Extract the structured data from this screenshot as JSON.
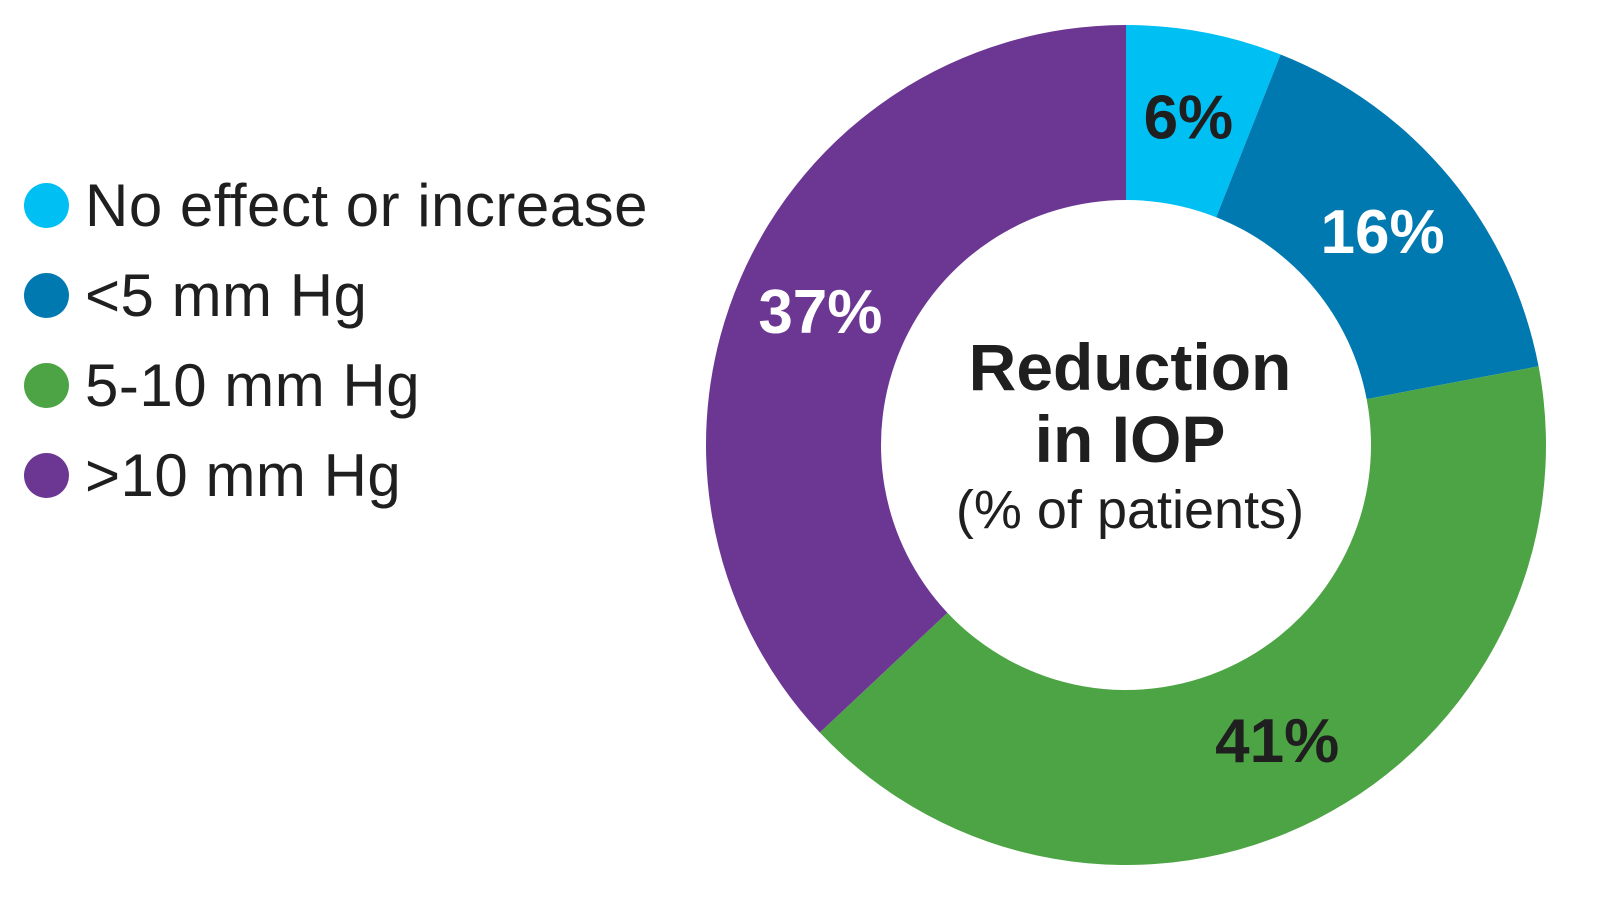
{
  "chart_data": {
    "type": "pie",
    "variant": "donut",
    "center_title_lines": [
      "Reduction",
      "in IOP"
    ],
    "center_subtitle": "(% of patients)",
    "legend_position": "left",
    "slices": [
      {
        "name": "No effect or increase",
        "value": 6,
        "label": "6%",
        "color": "#00bff3",
        "label_color": "#1f1f1f"
      },
      {
        "name": "<5 mm Hg",
        "value": 16,
        "label": "16%",
        "color": "#0079b1",
        "label_color": "#ffffff"
      },
      {
        "name": "5-10 mm Hg",
        "value": 41,
        "label": "41%",
        "color": "#4ca444",
        "label_color": "#1f1f1f"
      },
      {
        "name": ">10 mm Hg",
        "value": 37,
        "label": "37%",
        "color": "#6c3793",
        "label_color": "#ffffff"
      }
    ]
  }
}
